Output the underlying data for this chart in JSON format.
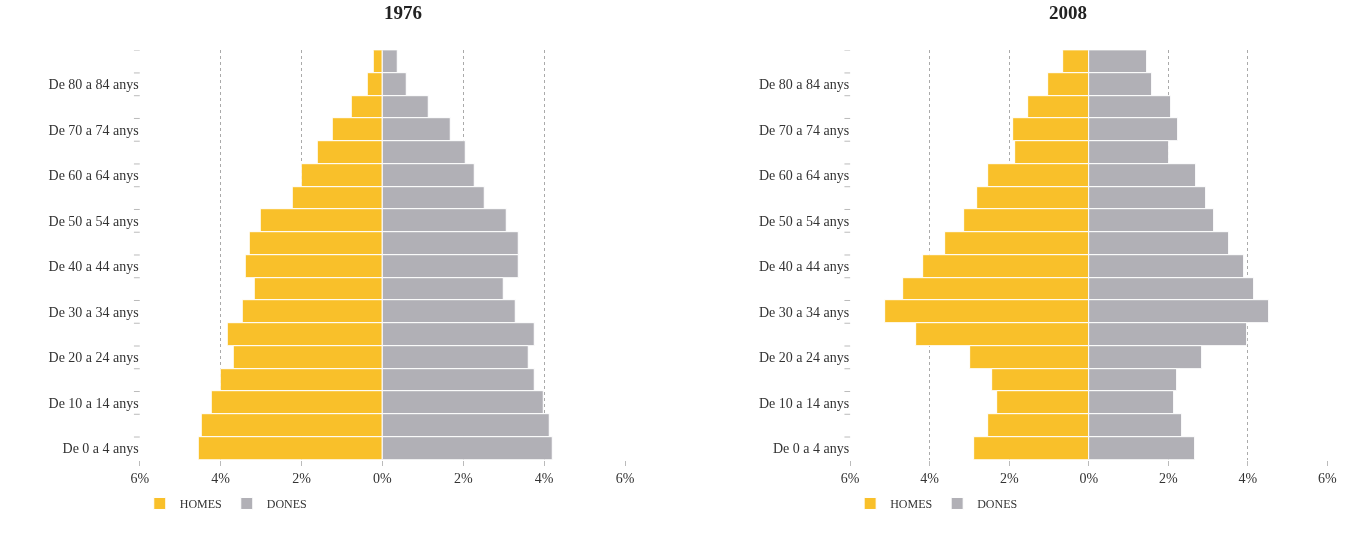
{
  "chart_data": [
    {
      "type": "bar",
      "title": "1976",
      "orientation": "horizontal",
      "stacked": true,
      "grid": "x",
      "legend": "bottom left",
      "categories": [
        null,
        "De 80 a 84 anys",
        null,
        "De 70 a 74 anys",
        null,
        "De 60 a 64 anys",
        null,
        "De 50 a 54 anys",
        null,
        "De 40 a 44 anys",
        null,
        "De 30 a 34 anys",
        null,
        "De 20 a 24 anys",
        null,
        "De 10 a 14 anys",
        null,
        "De 0 a 4 anys"
      ],
      "series": [
        {
          "name": "HOMES",
          "color": "#f9c02a",
          "values": [
            -0.22,
            -0.37,
            -0.76,
            -1.22,
            -1.61,
            -2.0,
            -2.22,
            -3.0,
            -3.29,
            -3.37,
            -3.15,
            -3.46,
            -3.83,
            -3.68,
            -4.0,
            -4.22,
            -4.46,
            -4.54
          ]
        },
        {
          "name": "DONES",
          "color": "#b1b0b6",
          "values": [
            0.37,
            0.61,
            1.15,
            1.68,
            2.07,
            2.29,
            2.54,
            3.07,
            3.37,
            3.37,
            3.0,
            3.29,
            3.76,
            3.61,
            3.76,
            4.0,
            4.15,
            4.22
          ]
        }
      ],
      "xlim": [
        -6,
        6
      ],
      "xticks": [
        {
          "value": -6,
          "label": "6%"
        },
        {
          "value": -4,
          "label": "4%"
        },
        {
          "value": -2,
          "label": "2%"
        },
        {
          "value": 0,
          "label": "0%"
        },
        {
          "value": 2,
          "label": "2%"
        },
        {
          "value": 4,
          "label": "4%"
        },
        {
          "value": 6,
          "label": "6%"
        }
      ]
    },
    {
      "type": "bar",
      "title": "2008",
      "orientation": "horizontal",
      "stacked": true,
      "grid": "x",
      "legend": "bottom left",
      "categories": [
        null,
        "De 80 a 84 anys",
        null,
        "De 70 a 74 anys",
        null,
        "De 60 a 64 anys",
        null,
        "De 50 a 54 anys",
        null,
        "De 40 a 44 anys",
        null,
        "De 30 a 34 anys",
        null,
        "De 20 a 24 anys",
        null,
        "De 10 a 14 anys",
        null,
        "De 0 a 4 anys"
      ],
      "series": [
        {
          "name": "HOMES",
          "color": "#f9c02a",
          "values": [
            -0.64,
            -1.01,
            -1.53,
            -1.9,
            -1.85,
            -2.54,
            -2.81,
            -3.14,
            -3.6,
            -4.17,
            -4.67,
            -5.11,
            -4.35,
            -2.99,
            -2.44,
            -2.3,
            -2.52,
            -2.89
          ]
        },
        {
          "name": "DONES",
          "color": "#b1b0b6",
          "values": [
            1.46,
            1.6,
            2.07,
            2.25,
            2.02,
            2.69,
            2.94,
            3.16,
            3.53,
            3.9,
            4.15,
            4.54,
            3.98,
            2.84,
            2.22,
            2.15,
            2.35,
            2.67
          ]
        }
      ],
      "xlim": [
        -6,
        6
      ],
      "xticks": [
        {
          "value": -6,
          "label": "6%"
        },
        {
          "value": -4,
          "label": "4%"
        },
        {
          "value": -2,
          "label": "2%"
        },
        {
          "value": 0,
          "label": "0%"
        },
        {
          "value": 2,
          "label": "2%"
        },
        {
          "value": 4,
          "label": "4%"
        },
        {
          "value": 6,
          "label": "6%"
        }
      ]
    }
  ]
}
